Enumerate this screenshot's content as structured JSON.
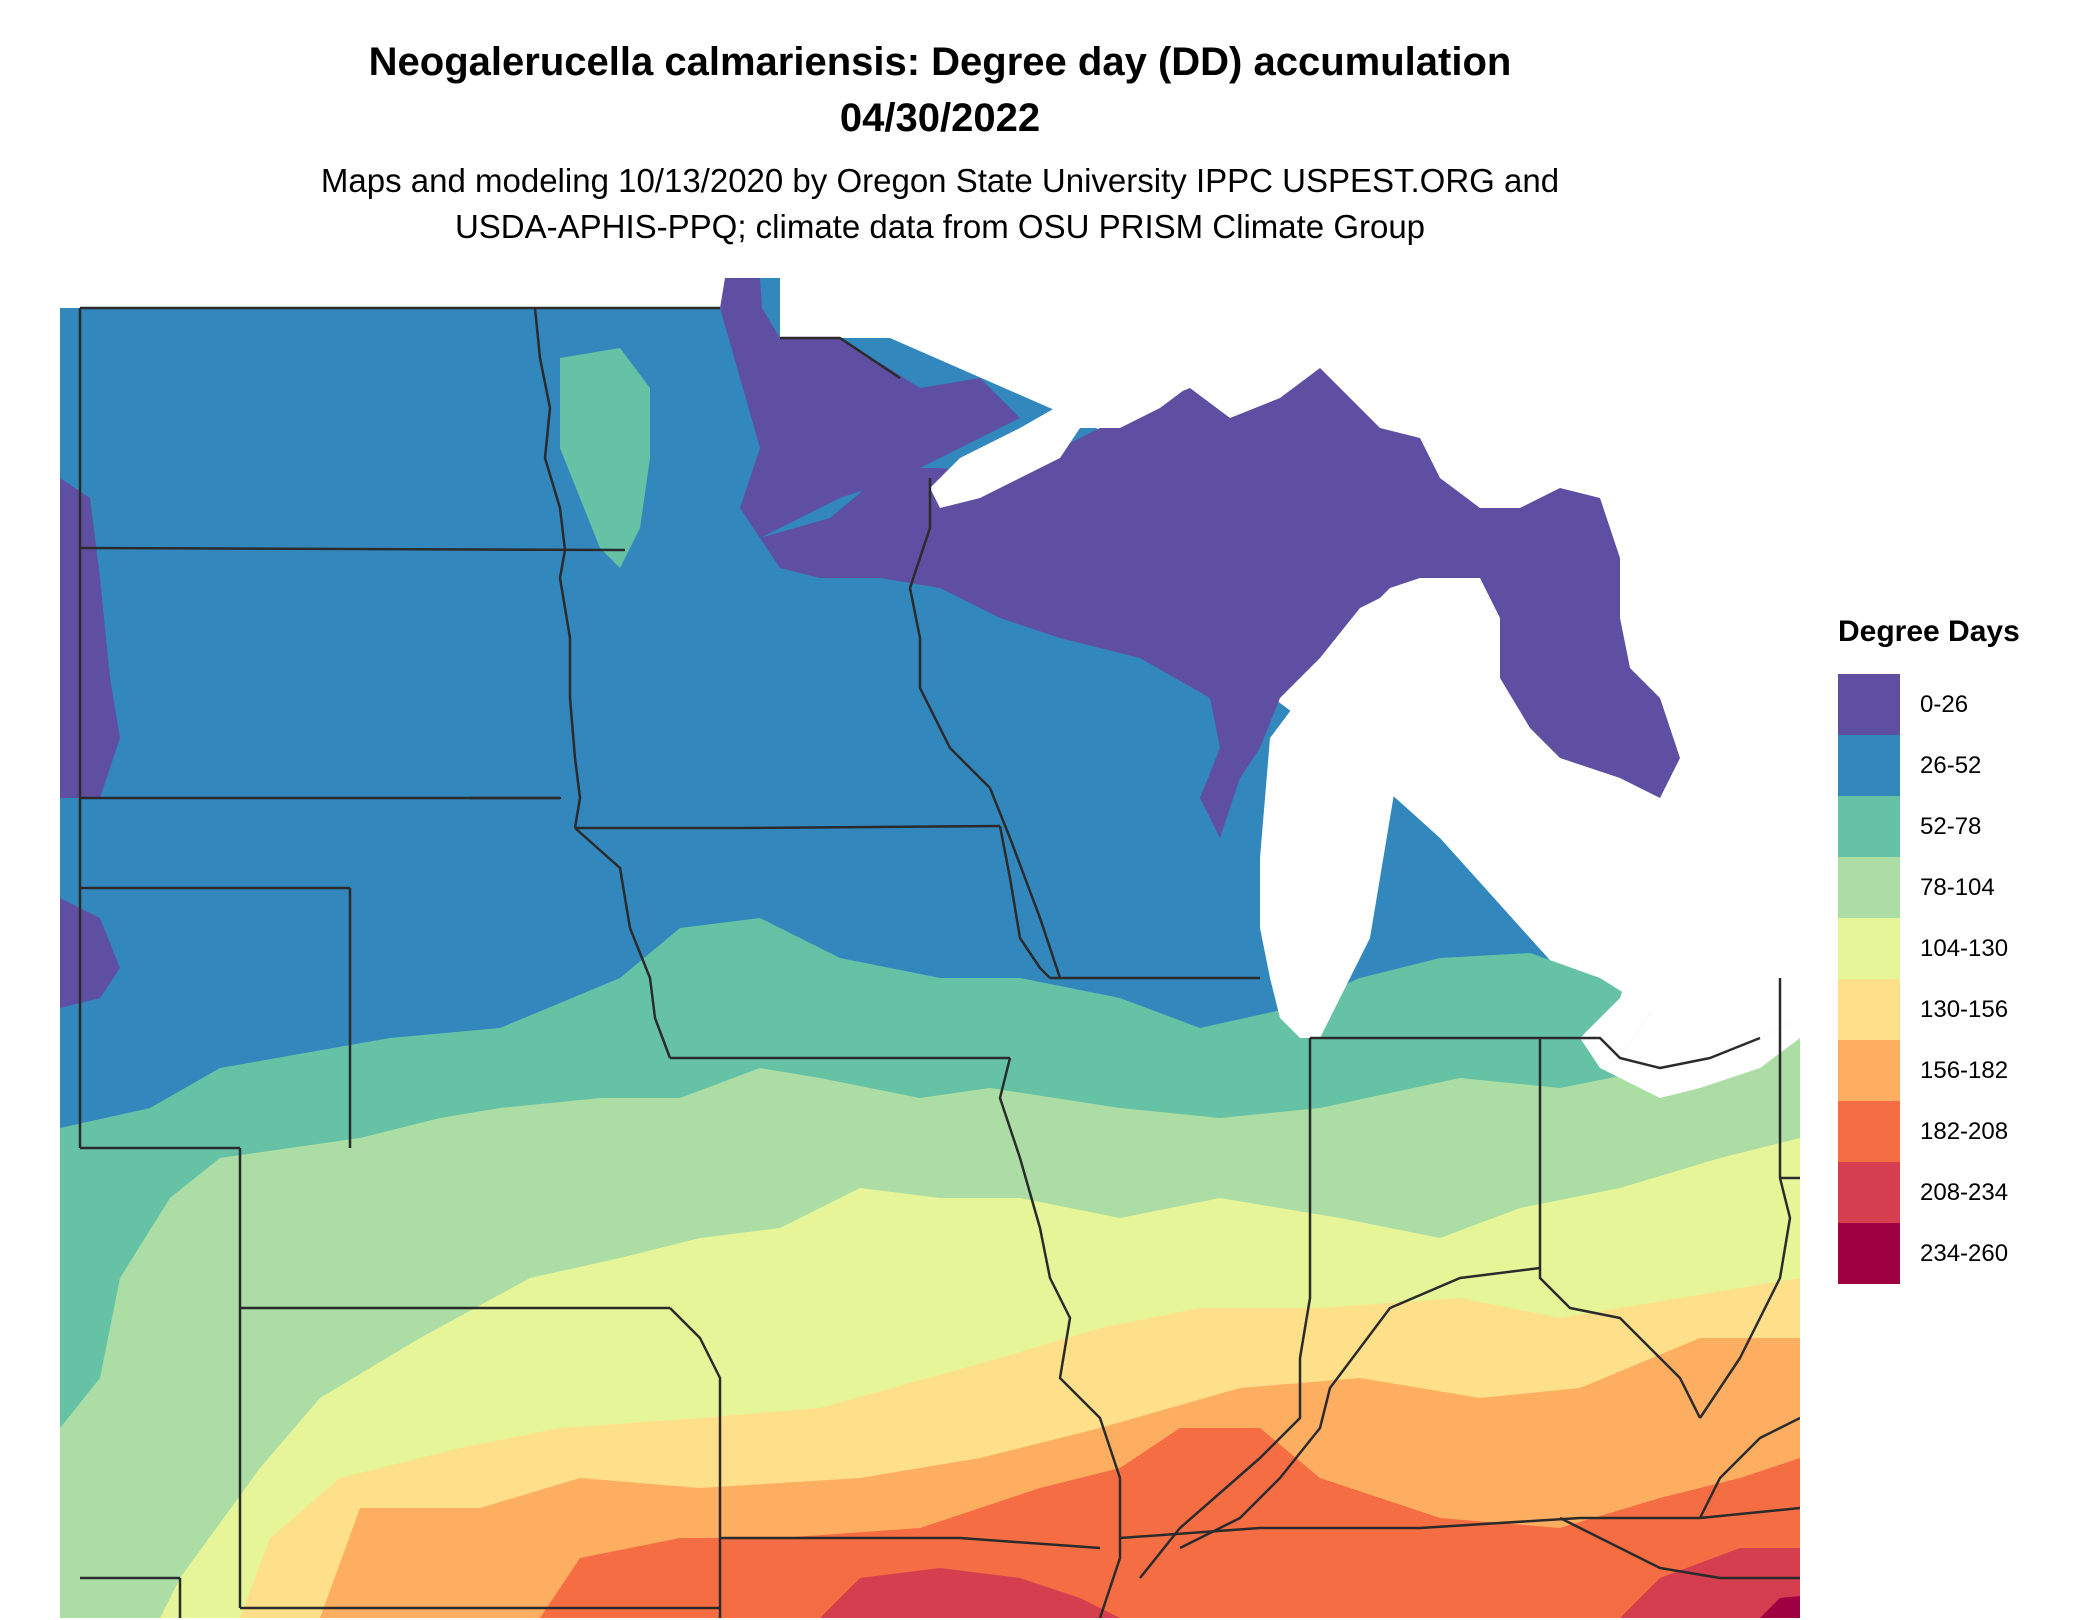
{
  "title_line1": "Neogalerucella calmariensis: Degree day (DD) accumulation",
  "title_line2": "04/30/2022",
  "subtitle_line1": "Maps and modeling 10/13/2020 by Oregon State University IPPC USPEST.ORG and",
  "subtitle_line2": "USDA-APHIS-PPQ; climate data from OSU PRISM Climate Group",
  "legend": {
    "title": "Degree Days",
    "items": [
      {
        "label": "0-26",
        "color": "#5e4fa2"
      },
      {
        "label": "26-52",
        "color": "#3288bd"
      },
      {
        "label": "52-78",
        "color": "#66c2a5"
      },
      {
        "label": "78-104",
        "color": "#abdda4"
      },
      {
        "label": "104-130",
        "color": "#e6f598"
      },
      {
        "label": "130-156",
        "color": "#fee08b"
      },
      {
        "label": "156-182",
        "color": "#fdae61"
      },
      {
        "label": "182-208",
        "color": "#f46d43"
      },
      {
        "label": "208-234",
        "color": "#d53e4f"
      },
      {
        "label": "234-260",
        "color": "#9e0142"
      }
    ]
  }
}
